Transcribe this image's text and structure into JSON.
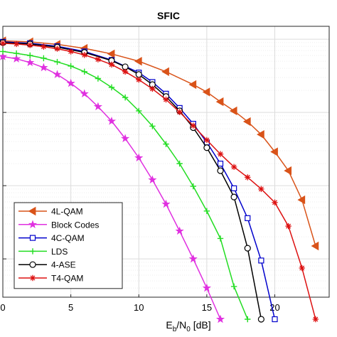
{
  "chart_data": {
    "type": "line",
    "title": "SFIC",
    "xlabel": {
      "main": "E",
      "sub1": "b",
      "mid": "/N",
      "sub2": "0",
      "tail": " [dB]"
    },
    "ylabel": "",
    "x_ticks": [
      "0",
      "5",
      "10",
      "15",
      "20"
    ],
    "xlim": [
      0,
      24
    ],
    "ylog": true,
    "ylim": [
      3e-05,
      0.15
    ],
    "grid": true,
    "legend_position": "bottom-left",
    "series": [
      {
        "name": "4L-QAM",
        "color": "#d95319",
        "marker": "triangle-left",
        "x": [
          0,
          2,
          4,
          6,
          8,
          10,
          12,
          14,
          15,
          16,
          17,
          18,
          19,
          20,
          21,
          22,
          23
        ],
        "y": [
          0.095,
          0.092,
          0.085,
          0.075,
          0.063,
          0.05,
          0.036,
          0.024,
          0.019,
          0.014,
          0.0105,
          0.0075,
          0.005,
          0.0029,
          0.0016,
          0.00064,
          0.00015
        ]
      },
      {
        "name": "Block Codes",
        "color": "#e030e0",
        "marker": "star",
        "x": [
          0,
          1,
          2,
          3,
          4,
          5,
          6,
          7,
          8,
          9,
          10,
          11,
          12,
          13,
          14,
          15,
          16
        ],
        "y": [
          0.058,
          0.054,
          0.048,
          0.041,
          0.033,
          0.025,
          0.018,
          0.012,
          0.0076,
          0.0044,
          0.0024,
          0.0012,
          0.00056,
          0.00024,
          0.0001,
          4e-05,
          1.5e-05
        ]
      },
      {
        "name": "4C-QAM",
        "color": "#0000cc",
        "marker": "square",
        "x": [
          0,
          2,
          4,
          6,
          8,
          10,
          11,
          12,
          13,
          14,
          15,
          16,
          17,
          18,
          19,
          20
        ],
        "y": [
          0.092,
          0.088,
          0.08,
          0.068,
          0.052,
          0.035,
          0.026,
          0.018,
          0.0115,
          0.007,
          0.0039,
          0.002,
          0.00092,
          0.00036,
          9.5e-05,
          1.5e-05
        ]
      },
      {
        "name": "LDS",
        "color": "#22dd22",
        "marker": "plus",
        "x": [
          0,
          1,
          2,
          3,
          4,
          5,
          6,
          7,
          8,
          9,
          10,
          11,
          12,
          13,
          14,
          15,
          16,
          17,
          18
        ],
        "y": [
          0.068,
          0.064,
          0.06,
          0.055,
          0.049,
          0.043,
          0.036,
          0.029,
          0.022,
          0.016,
          0.0105,
          0.0065,
          0.0037,
          0.002,
          0.00098,
          0.00045,
          0.00019,
          4.2e-05,
          1.5e-05
        ]
      },
      {
        "name": "4-ASE",
        "color": "#000000",
        "marker": "circle",
        "x": [
          0,
          2,
          4,
          6,
          8,
          9,
          10,
          11,
          12,
          13,
          14,
          15,
          16,
          17,
          18,
          19
        ],
        "y": [
          0.09,
          0.086,
          0.078,
          0.066,
          0.051,
          0.042,
          0.033,
          0.024,
          0.0165,
          0.0105,
          0.0062,
          0.0033,
          0.0016,
          0.0007,
          0.00014,
          1.5e-05
        ]
      },
      {
        "name": "T4-QAM",
        "color": "#dd1111",
        "marker": "asterisk",
        "x": [
          0,
          1,
          2,
          3,
          4,
          5,
          6,
          7,
          8,
          9,
          10,
          11,
          12,
          13,
          14,
          15,
          16,
          17,
          18,
          19,
          20,
          21,
          22,
          23
        ],
        "y": [
          0.088,
          0.086,
          0.083,
          0.079,
          0.074,
          0.068,
          0.061,
          0.053,
          0.045,
          0.036,
          0.028,
          0.021,
          0.015,
          0.0101,
          0.0066,
          0.0042,
          0.0027,
          0.0018,
          0.0013,
          0.0009,
          0.00059,
          0.00028,
          7.5e-05,
          1.5e-05
        ]
      }
    ]
  }
}
